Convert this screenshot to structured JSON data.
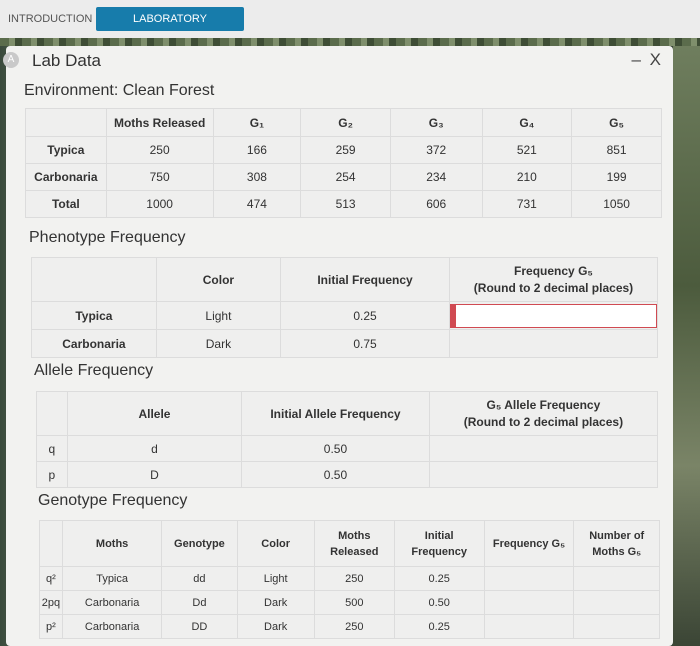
{
  "tabs": {
    "intro": "INTRODUCTION",
    "lab": "LABORATORY SIMULATION"
  },
  "window": {
    "title": "Lab Data",
    "close": "– X",
    "icon_letter": "A"
  },
  "environment": "Environment: Clean Forest",
  "moths_table": {
    "headers": [
      "",
      "Moths Released",
      "G₁",
      "G₂",
      "G₃",
      "G₄",
      "G₅"
    ],
    "rows": [
      [
        "Typica",
        "250",
        "166",
        "259",
        "372",
        "521",
        "851"
      ],
      [
        "Carbonaria",
        "750",
        "308",
        "254",
        "234",
        "210",
        "199"
      ],
      [
        "Total",
        "1000",
        "474",
        "513",
        "606",
        "731",
        "1050"
      ]
    ]
  },
  "phenotype": {
    "title": "Phenotype Frequency",
    "headers": [
      "",
      "Color",
      "Initial Frequency",
      "Frequency G₅",
      "(Round to 2 decimal places)"
    ],
    "rows": [
      [
        "Typica",
        "Light",
        "0.25"
      ],
      [
        "Carbonaria",
        "Dark",
        "0.75"
      ]
    ]
  },
  "allele": {
    "title": "Allele Frequency",
    "headers": [
      "",
      "Allele",
      "Initial Allele Frequency",
      "G₅ Allele Frequency",
      "(Round to 2 decimal places)"
    ],
    "rows": [
      [
        "q",
        "d",
        "0.50"
      ],
      [
        "p",
        "D",
        "0.50"
      ]
    ]
  },
  "genotype": {
    "title": "Genotype Frequency",
    "headers": [
      "",
      "Moths",
      "Genotype",
      "Color",
      "Moths",
      "Released",
      "Initial",
      "Frequency",
      "Frequency G₅",
      "Number of",
      "Moths G₅"
    ],
    "rows": [
      [
        "q²",
        "Typica",
        "dd",
        "Light",
        "250",
        "0.25"
      ],
      [
        "2pq",
        "Carbonaria",
        "Dd",
        "Dark",
        "500",
        "0.50"
      ],
      [
        "p²",
        "Carbonaria",
        "DD",
        "Dark",
        "250",
        "0.25"
      ]
    ]
  }
}
